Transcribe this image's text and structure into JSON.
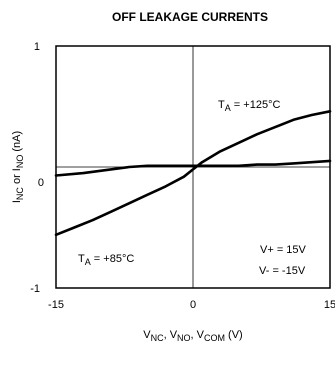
{
  "chart_data": {
    "type": "line",
    "title": "OFF LEAKAGE CURRENTS",
    "xlim": [
      -15,
      15
    ],
    "ylim": [
      -1,
      1
    ],
    "grid": false,
    "x_ticks": [
      "-15",
      "0",
      "15"
    ],
    "y_ticks": [
      "1",
      "0",
      "-1"
    ],
    "xlabel": {
      "parts": [
        {
          "t": "V"
        },
        {
          "t": "NC",
          "sub": true
        },
        {
          "t": ", V"
        },
        {
          "t": "NO",
          "sub": true
        },
        {
          "t": ", V"
        },
        {
          "t": "COM",
          "sub": true
        },
        {
          "t": " (V)"
        }
      ]
    },
    "ylabel": {
      "parts": [
        {
          "t": "I"
        },
        {
          "t": "NC",
          "sub": true
        },
        {
          "t": " or I"
        },
        {
          "t": "NO",
          "sub": true
        },
        {
          "t": " (nA)"
        }
      ]
    },
    "series": [
      {
        "label_parts": [
          {
            "t": "T"
          },
          {
            "t": "A",
            "sub": true
          },
          {
            "t": " = +125°C"
          }
        ],
        "x": [
          -15,
          -13,
          -11,
          -9,
          -7,
          -5,
          -3,
          -1,
          0,
          1,
          3,
          5,
          7,
          9,
          11,
          13,
          15
        ],
        "y": [
          -0.56,
          -0.5,
          -0.44,
          -0.37,
          -0.3,
          -0.23,
          -0.16,
          -0.08,
          -0.02,
          0.04,
          0.13,
          0.2,
          0.27,
          0.33,
          0.39,
          0.43,
          0.46
        ]
      },
      {
        "label_parts": [
          {
            "t": "T"
          },
          {
            "t": "A",
            "sub": true
          },
          {
            "t": " = +85°C"
          }
        ],
        "x": [
          -15,
          -12,
          -9,
          -7,
          -5,
          -3,
          -1,
          0,
          1,
          3,
          5,
          7,
          9,
          11,
          13,
          15
        ],
        "y": [
          -0.07,
          -0.05,
          -0.02,
          0.0,
          0.01,
          0.01,
          0.01,
          0.01,
          0.01,
          0.01,
          0.01,
          0.02,
          0.02,
          0.03,
          0.04,
          0.05
        ]
      }
    ],
    "notes": [
      "V+ = 15V",
      "V- = -15V"
    ]
  }
}
